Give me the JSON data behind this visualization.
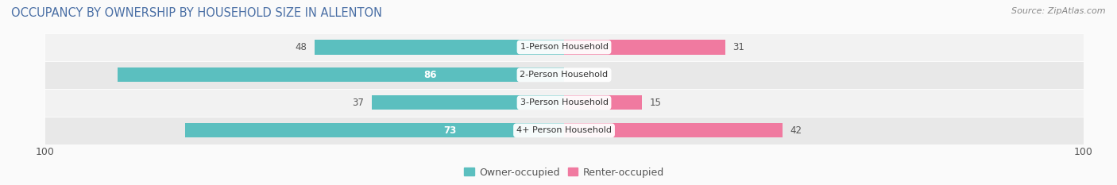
{
  "title": "OCCUPANCY BY OWNERSHIP BY HOUSEHOLD SIZE IN ALLENTON",
  "source": "Source: ZipAtlas.com",
  "categories": [
    "1-Person Household",
    "2-Person Household",
    "3-Person Household",
    "4+ Person Household"
  ],
  "owner_values": [
    48,
    86,
    37,
    73
  ],
  "renter_values": [
    31,
    0,
    15,
    42
  ],
  "max_val": 100,
  "owner_color": "#5BBFBF",
  "renter_color": "#F07AA0",
  "row_colors": [
    "#F2F2F2",
    "#E8E8E8",
    "#F2F2F2",
    "#E8E8E8"
  ],
  "title_color": "#4A6FA5",
  "label_color": "#555555",
  "source_color": "#888888",
  "title_fontsize": 10.5,
  "source_fontsize": 8,
  "tick_fontsize": 9,
  "bar_label_fontsize": 8.5,
  "category_fontsize": 8,
  "legend_fontsize": 9
}
